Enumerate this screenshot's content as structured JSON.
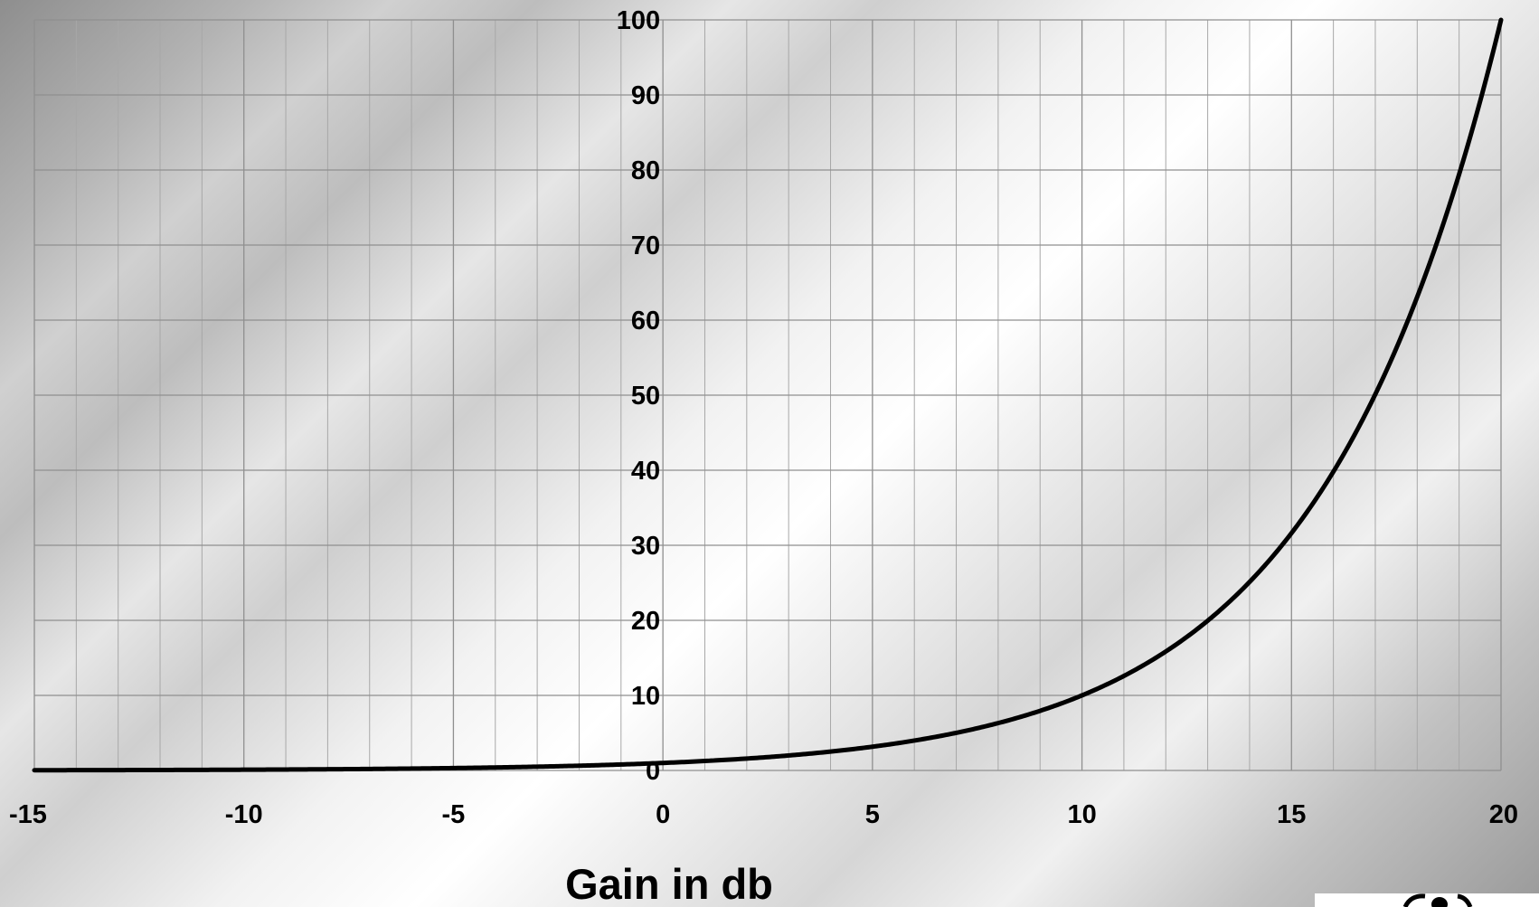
{
  "chart_data": {
    "type": "line",
    "title": "",
    "xlabel": "Gain in db",
    "ylabel": "",
    "xlim": [
      -15,
      20
    ],
    "ylim": [
      0,
      100
    ],
    "x_ticks": [
      -15,
      -10,
      -5,
      0,
      5,
      10,
      15,
      20
    ],
    "y_ticks": [
      0,
      10,
      20,
      30,
      40,
      50,
      60,
      70,
      80,
      90,
      100
    ],
    "x_minor_step": 1,
    "grid": true,
    "legend": "none",
    "series": [
      {
        "x": [
          -15,
          -14,
          -13,
          -12,
          -11,
          -10,
          -9,
          -8,
          -7,
          -6,
          -5,
          -4,
          -3,
          -2,
          -1,
          0,
          1,
          2,
          3,
          4,
          5,
          6,
          7,
          8,
          9,
          10,
          11,
          12,
          13,
          14,
          15,
          16,
          17,
          18,
          19,
          20
        ],
        "values": [
          0.03,
          0.04,
          0.05,
          0.06,
          0.08,
          0.1,
          0.13,
          0.16,
          0.2,
          0.25,
          0.32,
          0.4,
          0.5,
          0.63,
          0.79,
          1,
          1.26,
          1.58,
          2,
          2.51,
          3.16,
          3.98,
          5.01,
          6.31,
          7.94,
          10,
          12.59,
          15.85,
          19.95,
          25.12,
          31.62,
          39.81,
          50.12,
          63.1,
          79.43,
          100
        ],
        "color": "#000000"
      }
    ]
  }
}
